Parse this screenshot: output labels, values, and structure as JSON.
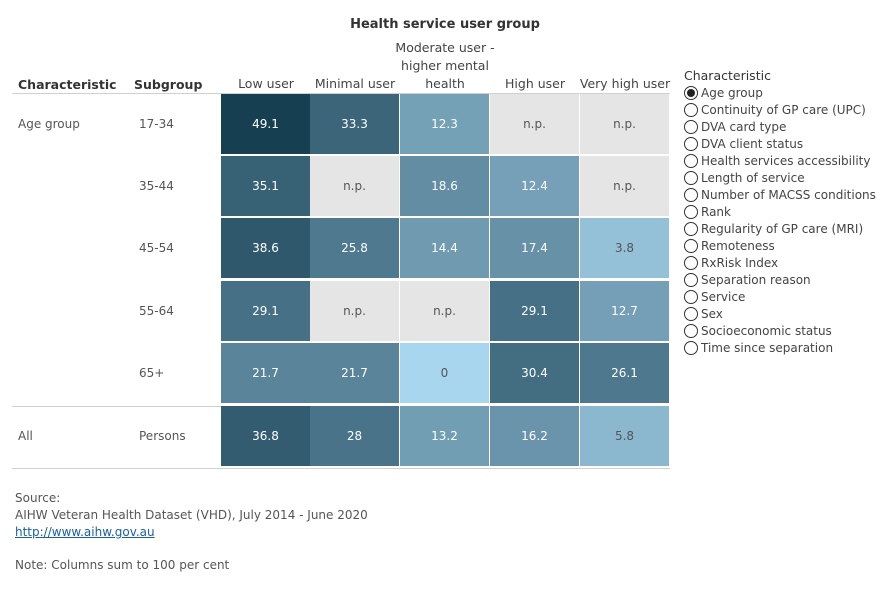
{
  "chart_data": {
    "type": "heatmap",
    "title": "Health service user group",
    "row_header": "Characteristic",
    "subgroup_header": "Subgroup",
    "columns": [
      "Low user",
      "Minimal user",
      "Moderate user - higher mental health",
      "High user",
      "Very high user"
    ],
    "rows": [
      {
        "characteristic": "Age group",
        "subgroup": "17-34",
        "values": [
          "49.1",
          "33.3",
          "12.3",
          "n.p.",
          "n.p."
        ]
      },
      {
        "characteristic": "",
        "subgroup": "35-44",
        "values": [
          "35.1",
          "n.p.",
          "18.6",
          "12.4",
          "n.p."
        ]
      },
      {
        "characteristic": "",
        "subgroup": "45-54",
        "values": [
          "38.6",
          "25.8",
          "14.4",
          "17.4",
          "3.8"
        ]
      },
      {
        "characteristic": "",
        "subgroup": "55-64",
        "values": [
          "29.1",
          "n.p.",
          "n.p.",
          "29.1",
          "12.7"
        ]
      },
      {
        "characteristic": "",
        "subgroup": "65+",
        "values": [
          "21.7",
          "21.7",
          "0",
          "30.4",
          "26.1"
        ]
      },
      {
        "characteristic": "All",
        "subgroup": "Persons",
        "values": [
          "36.8",
          "28",
          "13.2",
          "16.2",
          "5.8"
        ]
      }
    ],
    "color_scale": {
      "low": "#a9d6ef",
      "high": "#173f52",
      "na": "#e5e5e5"
    }
  },
  "legend": {
    "title": "Characteristic",
    "selected_index": 0,
    "items": [
      "Age group",
      "Continuity of GP care (UPC)",
      "DVA card type",
      "DVA client status",
      "Health services accessibility",
      "Length of service",
      "Number of MACSS conditions",
      "Rank",
      "Regularity of GP care (MRI)",
      "Remoteness",
      "RxRisk Index",
      "Separation reason",
      "Service",
      "Sex",
      "Socioeconomic status",
      "Time since separation"
    ]
  },
  "footer": {
    "source_label": "Source:",
    "source_text": "AIHW Veteran Health Dataset (VHD), July 2014 - June 2020",
    "link": "http://www.aihw.gov.au",
    "note": "Note: Columns sum to 100 per cent"
  }
}
